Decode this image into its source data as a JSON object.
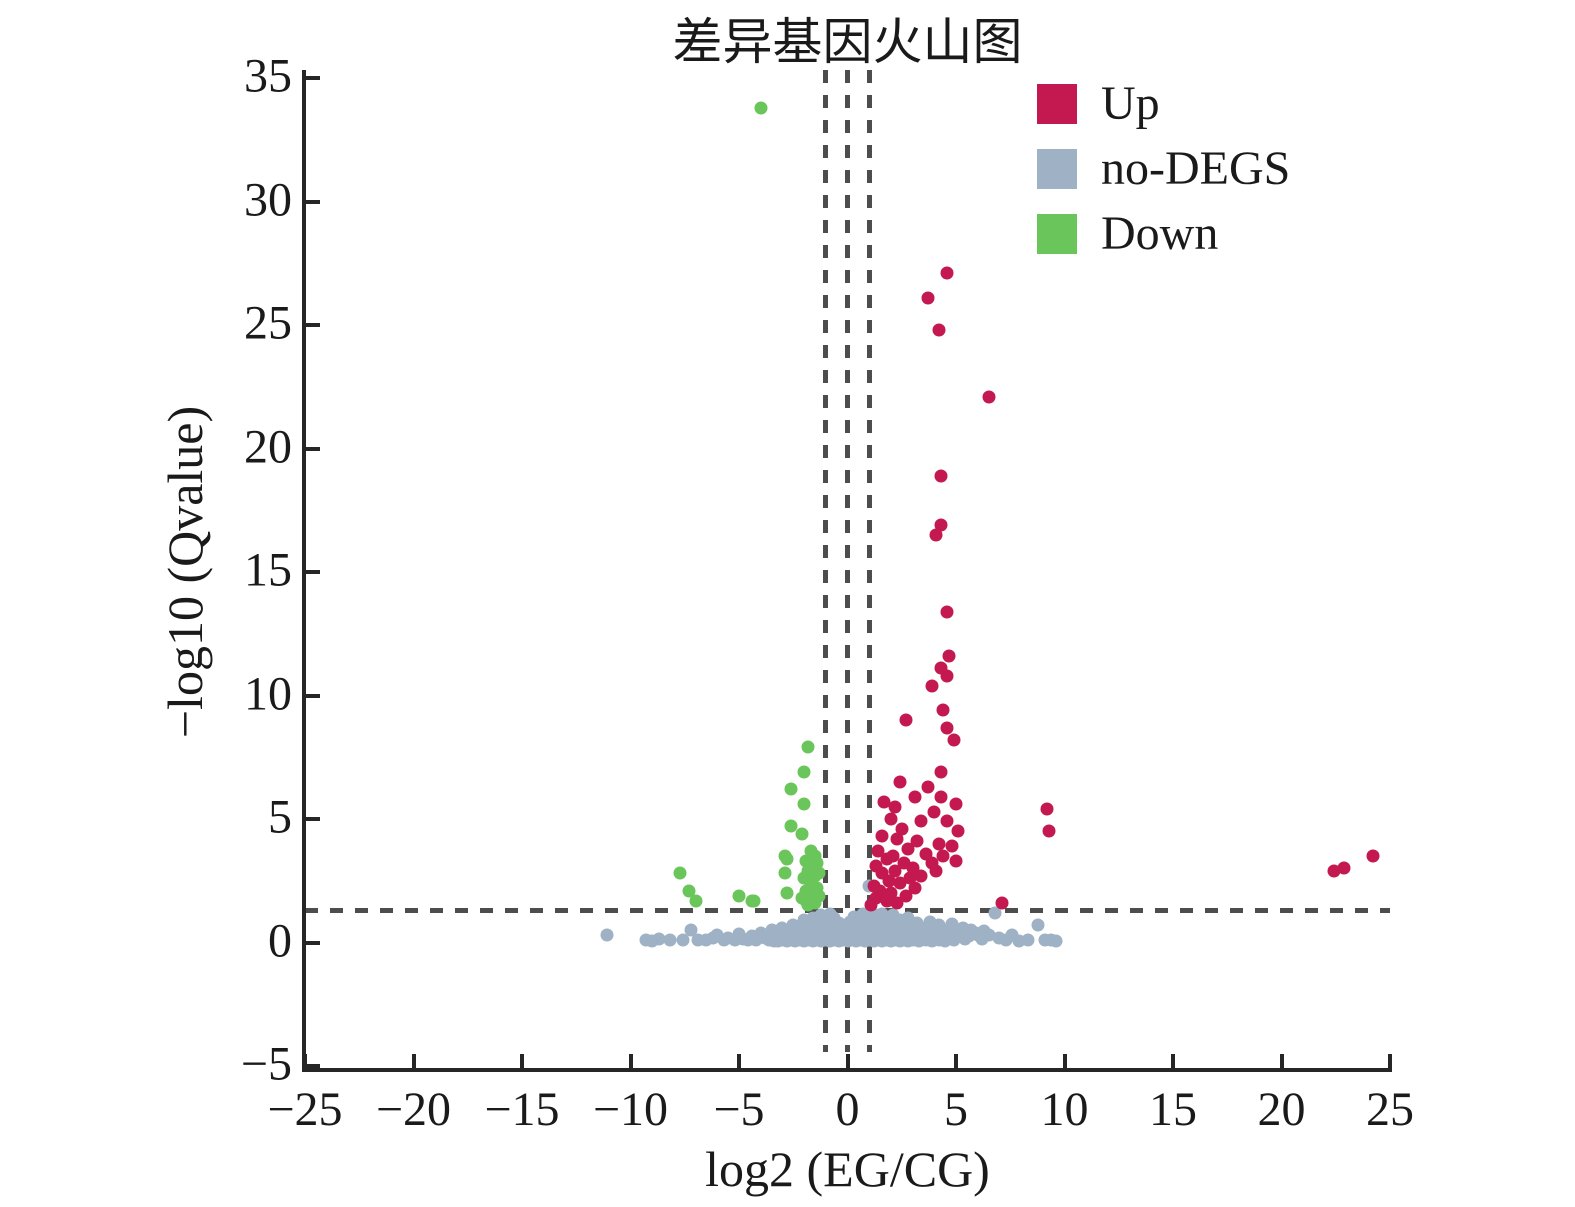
{
  "chart_data": {
    "type": "scatter",
    "title": "差异基因火山图",
    "xlabel": "log2 (EG/CG)",
    "ylabel": "−log10 (Qvalue)",
    "xlim": [
      -25,
      25
    ],
    "ylim": [
      -5,
      35
    ],
    "x_ticks": [
      -25,
      -20,
      -15,
      -10,
      -5,
      0,
      5,
      10,
      15,
      20,
      25
    ],
    "x_tick_labels": [
      "−25",
      "−20",
      "−15",
      "−10",
      "−5",
      "0",
      "5",
      "10",
      "15",
      "20",
      "25"
    ],
    "y_ticks": [
      35,
      30,
      25,
      20,
      15,
      10,
      5,
      0,
      -5
    ],
    "y_tick_labels": [
      "35",
      "30",
      "25",
      "20",
      "15",
      "10",
      "5",
      "0",
      "−5"
    ],
    "grid": false,
    "legend_position": "top-right-inside",
    "thresholds": {
      "vlines_x": [
        -1,
        0,
        1
      ],
      "hline_y": 1.3
    },
    "series": [
      {
        "name": "Up",
        "color": "#c31950",
        "points": [
          [
            4.6,
            27.1
          ],
          [
            3.7,
            26.1
          ],
          [
            4.2,
            24.8
          ],
          [
            6.5,
            22.1
          ],
          [
            4.3,
            18.9
          ],
          [
            4.3,
            16.9
          ],
          [
            4.1,
            16.5
          ],
          [
            4.6,
            13.4
          ],
          [
            4.7,
            11.6
          ],
          [
            4.3,
            11.1
          ],
          [
            4.6,
            10.8
          ],
          [
            3.9,
            10.4
          ],
          [
            4.4,
            9.4
          ],
          [
            2.7,
            9.0
          ],
          [
            4.6,
            8.7
          ],
          [
            4.9,
            8.2
          ],
          [
            4.3,
            6.9
          ],
          [
            2.4,
            6.5
          ],
          [
            3.7,
            6.3
          ],
          [
            3.1,
            5.9
          ],
          [
            4.3,
            5.9
          ],
          [
            1.7,
            5.7
          ],
          [
            2.2,
            5.5
          ],
          [
            5.0,
            5.6
          ],
          [
            4.0,
            5.3
          ],
          [
            9.2,
            5.4
          ],
          [
            9.3,
            4.5
          ],
          [
            2.0,
            5.0
          ],
          [
            3.4,
            4.9
          ],
          [
            4.6,
            4.9
          ],
          [
            2.5,
            4.6
          ],
          [
            5.1,
            4.5
          ],
          [
            1.6,
            4.3
          ],
          [
            2.3,
            4.2
          ],
          [
            3.2,
            4.1
          ],
          [
            4.2,
            4.0
          ],
          [
            4.8,
            3.9
          ],
          [
            2.8,
            3.8
          ],
          [
            1.4,
            3.7
          ],
          [
            3.6,
            3.6
          ],
          [
            2.1,
            3.5
          ],
          [
            4.4,
            3.5
          ],
          [
            1.8,
            3.4
          ],
          [
            5.0,
            3.3
          ],
          [
            2.6,
            3.2
          ],
          [
            3.9,
            3.2
          ],
          [
            1.3,
            3.1
          ],
          [
            3.0,
            3.0
          ],
          [
            2.2,
            2.9
          ],
          [
            4.1,
            2.9
          ],
          [
            1.6,
            2.8
          ],
          [
            3.4,
            2.7
          ],
          [
            2.9,
            2.6
          ],
          [
            1.9,
            2.5
          ],
          [
            2.4,
            2.4
          ],
          [
            1.2,
            2.3
          ],
          [
            3.1,
            2.2
          ],
          [
            1.5,
            2.1
          ],
          [
            2.0,
            2.0
          ],
          [
            2.7,
            1.9
          ],
          [
            1.3,
            1.8
          ],
          [
            1.8,
            1.7
          ],
          [
            2.3,
            1.6
          ],
          [
            7.1,
            1.6
          ],
          [
            1.1,
            1.5
          ],
          [
            22.4,
            2.9
          ],
          [
            22.9,
            3.0
          ],
          [
            24.2,
            3.5
          ]
        ]
      },
      {
        "name": "no-DEGS",
        "color": "#9fb2c5",
        "points": [
          [
            -11.1,
            0.3
          ],
          [
            -9.3,
            0.1
          ],
          [
            -9.0,
            0.08
          ],
          [
            -8.7,
            0.15
          ],
          [
            -8.2,
            0.1
          ],
          [
            -7.6,
            0.1
          ],
          [
            -7.2,
            0.5
          ],
          [
            -6.9,
            0.1
          ],
          [
            -6.5,
            0.12
          ],
          [
            -6.2,
            0.2
          ],
          [
            -6.0,
            0.3
          ],
          [
            -5.7,
            0.1
          ],
          [
            -5.5,
            0.2
          ],
          [
            -5.2,
            0.12
          ],
          [
            -5.0,
            0.35
          ],
          [
            -4.8,
            0.15
          ],
          [
            -4.6,
            0.1
          ],
          [
            -4.4,
            0.25
          ],
          [
            -4.2,
            0.12
          ],
          [
            -4.0,
            0.4
          ],
          [
            -3.8,
            0.2
          ],
          [
            -3.6,
            0.12
          ],
          [
            -3.5,
            0.5
          ],
          [
            -3.3,
            0.3
          ],
          [
            -3.1,
            0.15
          ],
          [
            -3.0,
            0.6
          ],
          [
            -2.9,
            0.2
          ],
          [
            -2.7,
            0.4
          ],
          [
            -2.5,
            0.7
          ],
          [
            -2.4,
            0.3
          ],
          [
            -2.2,
            0.5
          ],
          [
            -2.1,
            0.15
          ],
          [
            -2.0,
            0.9
          ],
          [
            -1.9,
            0.4
          ],
          [
            -1.8,
            0.7
          ],
          [
            -1.7,
            0.2
          ],
          [
            -1.6,
            1.0
          ],
          [
            -1.5,
            0.5
          ],
          [
            -1.4,
            0.8
          ],
          [
            -1.3,
            0.3
          ],
          [
            -1.2,
            1.1
          ],
          [
            -1.1,
            0.6
          ],
          [
            -1.0,
            0.9
          ],
          [
            -0.9,
            0.4
          ],
          [
            -0.8,
            1.15
          ],
          [
            -0.7,
            0.7
          ],
          [
            -0.6,
            1.0
          ],
          [
            -0.5,
            0.5
          ],
          [
            -0.4,
            0.8
          ],
          [
            -0.3,
            0.25
          ],
          [
            -0.2,
            0.6
          ],
          [
            -0.1,
            0.35
          ],
          [
            0.0,
            0.55
          ],
          [
            0.1,
            0.85
          ],
          [
            0.2,
            0.4
          ],
          [
            0.3,
            1.05
          ],
          [
            0.4,
            0.7
          ],
          [
            0.5,
            1.0
          ],
          [
            0.6,
            0.35
          ],
          [
            0.7,
            1.15
          ],
          [
            0.8,
            0.6
          ],
          [
            0.9,
            0.9
          ],
          [
            1.0,
            1.2
          ],
          [
            1.0,
            2.3
          ],
          [
            1.1,
            0.5
          ],
          [
            1.2,
            0.85
          ],
          [
            1.3,
            1.1
          ],
          [
            1.4,
            0.45
          ],
          [
            1.5,
            0.95
          ],
          [
            1.6,
            1.15
          ],
          [
            1.7,
            0.6
          ],
          [
            1.8,
            1.0
          ],
          [
            1.9,
            0.35
          ],
          [
            2.0,
            0.8
          ],
          [
            2.1,
            1.1
          ],
          [
            2.2,
            0.5
          ],
          [
            2.4,
            0.9
          ],
          [
            2.5,
            0.4
          ],
          [
            2.6,
            0.7
          ],
          [
            2.8,
            1.0
          ],
          [
            3.0,
            0.5
          ],
          [
            3.2,
            0.8
          ],
          [
            3.4,
            0.35
          ],
          [
            3.6,
            0.6
          ],
          [
            3.8,
            0.85
          ],
          [
            4.0,
            0.4
          ],
          [
            4.2,
            0.7
          ],
          [
            4.4,
            0.25
          ],
          [
            4.6,
            0.5
          ],
          [
            4.8,
            0.75
          ],
          [
            5.0,
            0.3
          ],
          [
            5.3,
            0.6
          ],
          [
            5.6,
            0.25
          ],
          [
            5.9,
            0.4
          ],
          [
            6.2,
            0.15
          ],
          [
            6.5,
            0.3
          ],
          [
            6.8,
            1.2
          ],
          [
            7.0,
            0.2
          ],
          [
            7.3,
            0.12
          ],
          [
            7.6,
            0.3
          ],
          [
            7.9,
            0.08
          ],
          [
            8.3,
            0.12
          ],
          [
            8.8,
            0.7
          ],
          [
            9.1,
            0.12
          ],
          [
            9.4,
            0.1
          ],
          [
            9.6,
            0.08
          ],
          [
            -3.4,
            0.08
          ],
          [
            -3.2,
            0.05
          ],
          [
            -3.0,
            0.1
          ],
          [
            -2.8,
            0.06
          ],
          [
            -2.6,
            0.1
          ],
          [
            -2.4,
            0.05
          ],
          [
            -2.2,
            0.12
          ],
          [
            -2.0,
            0.06
          ],
          [
            -1.8,
            0.1
          ],
          [
            -1.6,
            0.05
          ],
          [
            -1.4,
            0.12
          ],
          [
            -1.2,
            0.06
          ],
          [
            -1.0,
            0.1
          ],
          [
            -0.8,
            0.05
          ],
          [
            -0.6,
            0.12
          ],
          [
            -0.4,
            0.06
          ],
          [
            -0.2,
            0.1
          ],
          [
            0.0,
            0.05
          ],
          [
            0.2,
            0.12
          ],
          [
            0.4,
            0.06
          ],
          [
            0.6,
            0.1
          ],
          [
            0.8,
            0.05
          ],
          [
            1.0,
            0.12
          ],
          [
            1.2,
            0.06
          ],
          [
            1.4,
            0.1
          ],
          [
            1.6,
            0.05
          ],
          [
            1.8,
            0.12
          ],
          [
            2.0,
            0.06
          ],
          [
            2.2,
            0.1
          ],
          [
            2.4,
            0.05
          ],
          [
            2.6,
            0.12
          ],
          [
            2.8,
            0.06
          ],
          [
            3.0,
            0.1
          ],
          [
            3.3,
            0.05
          ],
          [
            3.6,
            0.12
          ],
          [
            3.9,
            0.06
          ],
          [
            4.2,
            0.1
          ],
          [
            4.5,
            0.05
          ],
          [
            4.9,
            0.1
          ],
          [
            -2.3,
            0.35
          ],
          [
            -1.9,
            0.55
          ],
          [
            -1.5,
            0.3
          ],
          [
            -1.1,
            0.45
          ],
          [
            -0.7,
            0.3
          ],
          [
            -0.3,
            0.5
          ],
          [
            0.1,
            0.3
          ],
          [
            0.5,
            0.55
          ],
          [
            0.9,
            0.3
          ],
          [
            1.3,
            0.6
          ],
          [
            1.7,
            0.35
          ],
          [
            2.1,
            0.6
          ],
          [
            2.5,
            0.3
          ],
          [
            3.1,
            0.3
          ],
          [
            3.5,
            0.2
          ],
          [
            3.7,
            0.45
          ],
          [
            4.1,
            0.2
          ],
          [
            4.3,
            0.5
          ],
          [
            4.7,
            0.3
          ],
          [
            5.1,
            0.5
          ],
          [
            5.4,
            0.15
          ],
          [
            5.7,
            0.5
          ],
          [
            6.0,
            0.3
          ],
          [
            6.3,
            0.45
          ]
        ]
      },
      {
        "name": "Down",
        "color": "#6ac65a",
        "points": [
          [
            -4.0,
            33.8
          ],
          [
            -1.8,
            7.9
          ],
          [
            -2.0,
            6.9
          ],
          [
            -2.6,
            6.2
          ],
          [
            -2.0,
            5.6
          ],
          [
            -2.6,
            4.7
          ],
          [
            -2.1,
            4.4
          ],
          [
            -2.9,
            3.5
          ],
          [
            -2.8,
            3.4
          ],
          [
            -1.7,
            3.7
          ],
          [
            -1.5,
            3.5
          ],
          [
            -1.9,
            3.3
          ],
          [
            -1.6,
            3.1
          ],
          [
            -2.9,
            2.8
          ],
          [
            -1.8,
            2.9
          ],
          [
            -1.5,
            2.7
          ],
          [
            -2.0,
            2.6
          ],
          [
            -1.7,
            2.4
          ],
          [
            -1.4,
            2.2
          ],
          [
            -2.8,
            2.0
          ],
          [
            -1.9,
            2.1
          ],
          [
            -1.6,
            1.9
          ],
          [
            -2.1,
            1.8
          ],
          [
            -1.5,
            1.6
          ],
          [
            -1.8,
            1.5
          ],
          [
            -1.3,
            2.8
          ],
          [
            -1.4,
            3.2
          ],
          [
            -1.6,
            2.3
          ],
          [
            -1.9,
            1.7
          ],
          [
            -1.3,
            1.9
          ],
          [
            -7.7,
            2.8
          ],
          [
            -7.3,
            2.1
          ],
          [
            -7.0,
            1.7
          ],
          [
            -5.0,
            1.9
          ],
          [
            -4.4,
            1.7
          ],
          [
            -4.3,
            1.7
          ]
        ]
      }
    ]
  },
  "legend": {
    "items": [
      {
        "label": "Up",
        "color": "#c31950"
      },
      {
        "label": "no-DEGS",
        "color": "#9fb2c5"
      },
      {
        "label": "Down",
        "color": "#6ac65a"
      }
    ]
  },
  "colors": {
    "axis": "#262626",
    "dashed_line": "#4d4d4d",
    "background": "#ffffff"
  }
}
